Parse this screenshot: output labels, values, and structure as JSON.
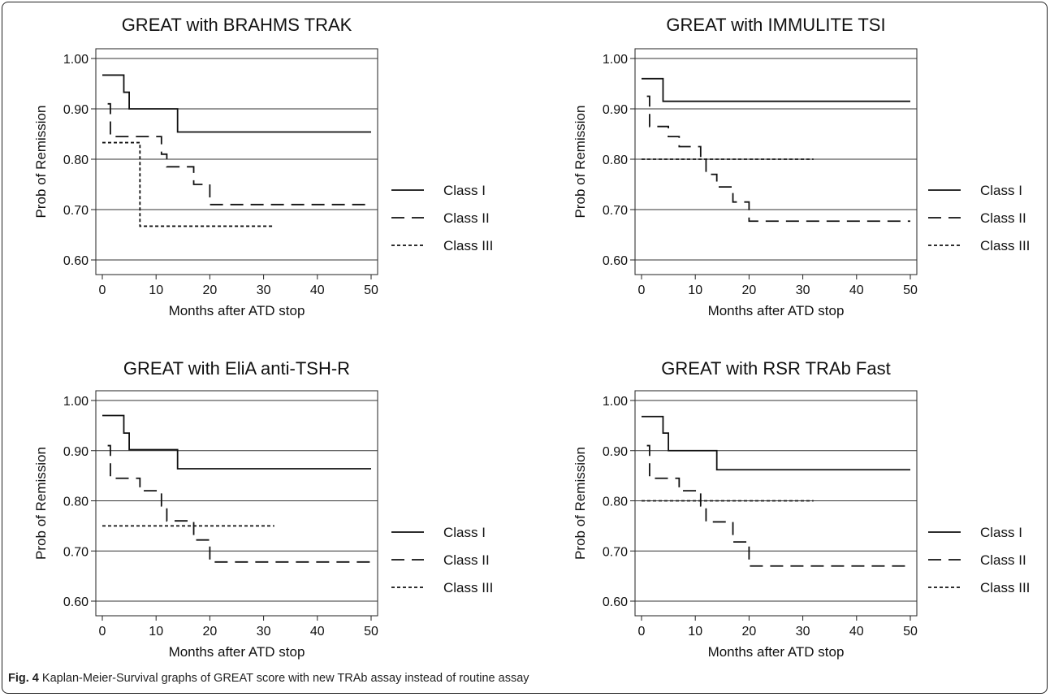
{
  "caption": {
    "label": "Fig. 4",
    "text": "Kaplan-Meier-Survival graphs of GREAT score with new TRAb assay instead of routine assay"
  },
  "chart_data": [
    {
      "type": "line",
      "title": "GREAT with BRAHMS TRAK",
      "xlabel": "Months after ATD stop",
      "ylabel": "Prob of Remission",
      "xlim": [
        0,
        50
      ],
      "ylim": [
        0.6,
        1.0
      ],
      "x_ticks": [
        "0",
        "10",
        "20",
        "30",
        "40",
        "50"
      ],
      "y_ticks": [
        "0.60",
        "0.70",
        "0.80",
        "0.90",
        "1.00"
      ],
      "grid": "horizontal",
      "legend_position": "right",
      "series": [
        {
          "name": "Class I",
          "style": "solid",
          "x": [
            0,
            4,
            5,
            14,
            50
          ],
          "y": [
            0.967,
            0.933,
            0.9,
            0.854,
            0.854
          ]
        },
        {
          "name": "Class II",
          "style": "dashed",
          "x": [
            1,
            1.5,
            11,
            12,
            17,
            20,
            50
          ],
          "y": [
            0.91,
            0.845,
            0.81,
            0.785,
            0.75,
            0.71,
            0.71
          ]
        },
        {
          "name": "Class III",
          "style": "dotted",
          "x": [
            0,
            6,
            7,
            32
          ],
          "y": [
            0.833,
            0.833,
            0.667,
            0.667
          ]
        }
      ]
    },
    {
      "type": "line",
      "title": "GREAT with IMMULITE TSI",
      "xlabel": "Months after ATD stop",
      "ylabel": "Prob of Remission",
      "xlim": [
        0,
        50
      ],
      "ylim": [
        0.6,
        1.0
      ],
      "x_ticks": [
        "0",
        "10",
        "20",
        "30",
        "40",
        "50"
      ],
      "y_ticks": [
        "0.60",
        "0.70",
        "0.80",
        "0.90",
        "1.00"
      ],
      "grid": "horizontal",
      "legend_position": "right",
      "series": [
        {
          "name": "Class I",
          "style": "solid",
          "x": [
            0,
            4,
            50
          ],
          "y": [
            0.96,
            0.915,
            0.915
          ]
        },
        {
          "name": "Class II",
          "style": "dashed",
          "x": [
            1,
            1.5,
            5,
            7,
            11,
            12,
            14,
            17,
            20,
            50
          ],
          "y": [
            0.925,
            0.865,
            0.845,
            0.825,
            0.8,
            0.77,
            0.745,
            0.715,
            0.677,
            0.677
          ]
        },
        {
          "name": "Class III",
          "style": "dotted",
          "x": [
            0,
            32
          ],
          "y": [
            0.8,
            0.8
          ]
        }
      ]
    },
    {
      "type": "line",
      "title": "GREAT with EliA anti-TSH-R",
      "xlabel": "Months after ATD stop",
      "ylabel": "Prob of Remission",
      "xlim": [
        0,
        50
      ],
      "ylim": [
        0.6,
        1.0
      ],
      "x_ticks": [
        "0",
        "10",
        "20",
        "30",
        "40",
        "50"
      ],
      "y_ticks": [
        "0.60",
        "0.70",
        "0.80",
        "0.90",
        "1.00"
      ],
      "grid": "horizontal",
      "legend_position": "right",
      "series": [
        {
          "name": "Class I",
          "style": "solid",
          "x": [
            0,
            4,
            5,
            14,
            50
          ],
          "y": [
            0.97,
            0.935,
            0.902,
            0.864,
            0.864
          ]
        },
        {
          "name": "Class II",
          "style": "dashed",
          "x": [
            1,
            1.5,
            7,
            11,
            12,
            17,
            20,
            50
          ],
          "y": [
            0.91,
            0.845,
            0.82,
            0.79,
            0.76,
            0.722,
            0.678,
            0.678
          ]
        },
        {
          "name": "Class III",
          "style": "dotted",
          "x": [
            0,
            32
          ],
          "y": [
            0.75,
            0.75
          ]
        }
      ]
    },
    {
      "type": "line",
      "title": "GREAT with RSR TRAb Fast",
      "xlabel": "Months after ATD stop",
      "ylabel": "Prob of Remission",
      "xlim": [
        0,
        50
      ],
      "ylim": [
        0.6,
        1.0
      ],
      "x_ticks": [
        "0",
        "10",
        "20",
        "30",
        "40",
        "50"
      ],
      "y_ticks": [
        "0.60",
        "0.70",
        "0.80",
        "0.90",
        "1.00"
      ],
      "grid": "horizontal",
      "legend_position": "right",
      "series": [
        {
          "name": "Class I",
          "style": "solid",
          "x": [
            0,
            4,
            5,
            14,
            50
          ],
          "y": [
            0.968,
            0.935,
            0.9,
            0.862,
            0.862
          ]
        },
        {
          "name": "Class II",
          "style": "dashed",
          "x": [
            1,
            1.5,
            7,
            11,
            12,
            17,
            20,
            50
          ],
          "y": [
            0.91,
            0.845,
            0.82,
            0.79,
            0.758,
            0.718,
            0.67,
            0.67
          ]
        },
        {
          "name": "Class III",
          "style": "dotted",
          "x": [
            0,
            32
          ],
          "y": [
            0.8,
            0.8
          ]
        }
      ]
    }
  ]
}
